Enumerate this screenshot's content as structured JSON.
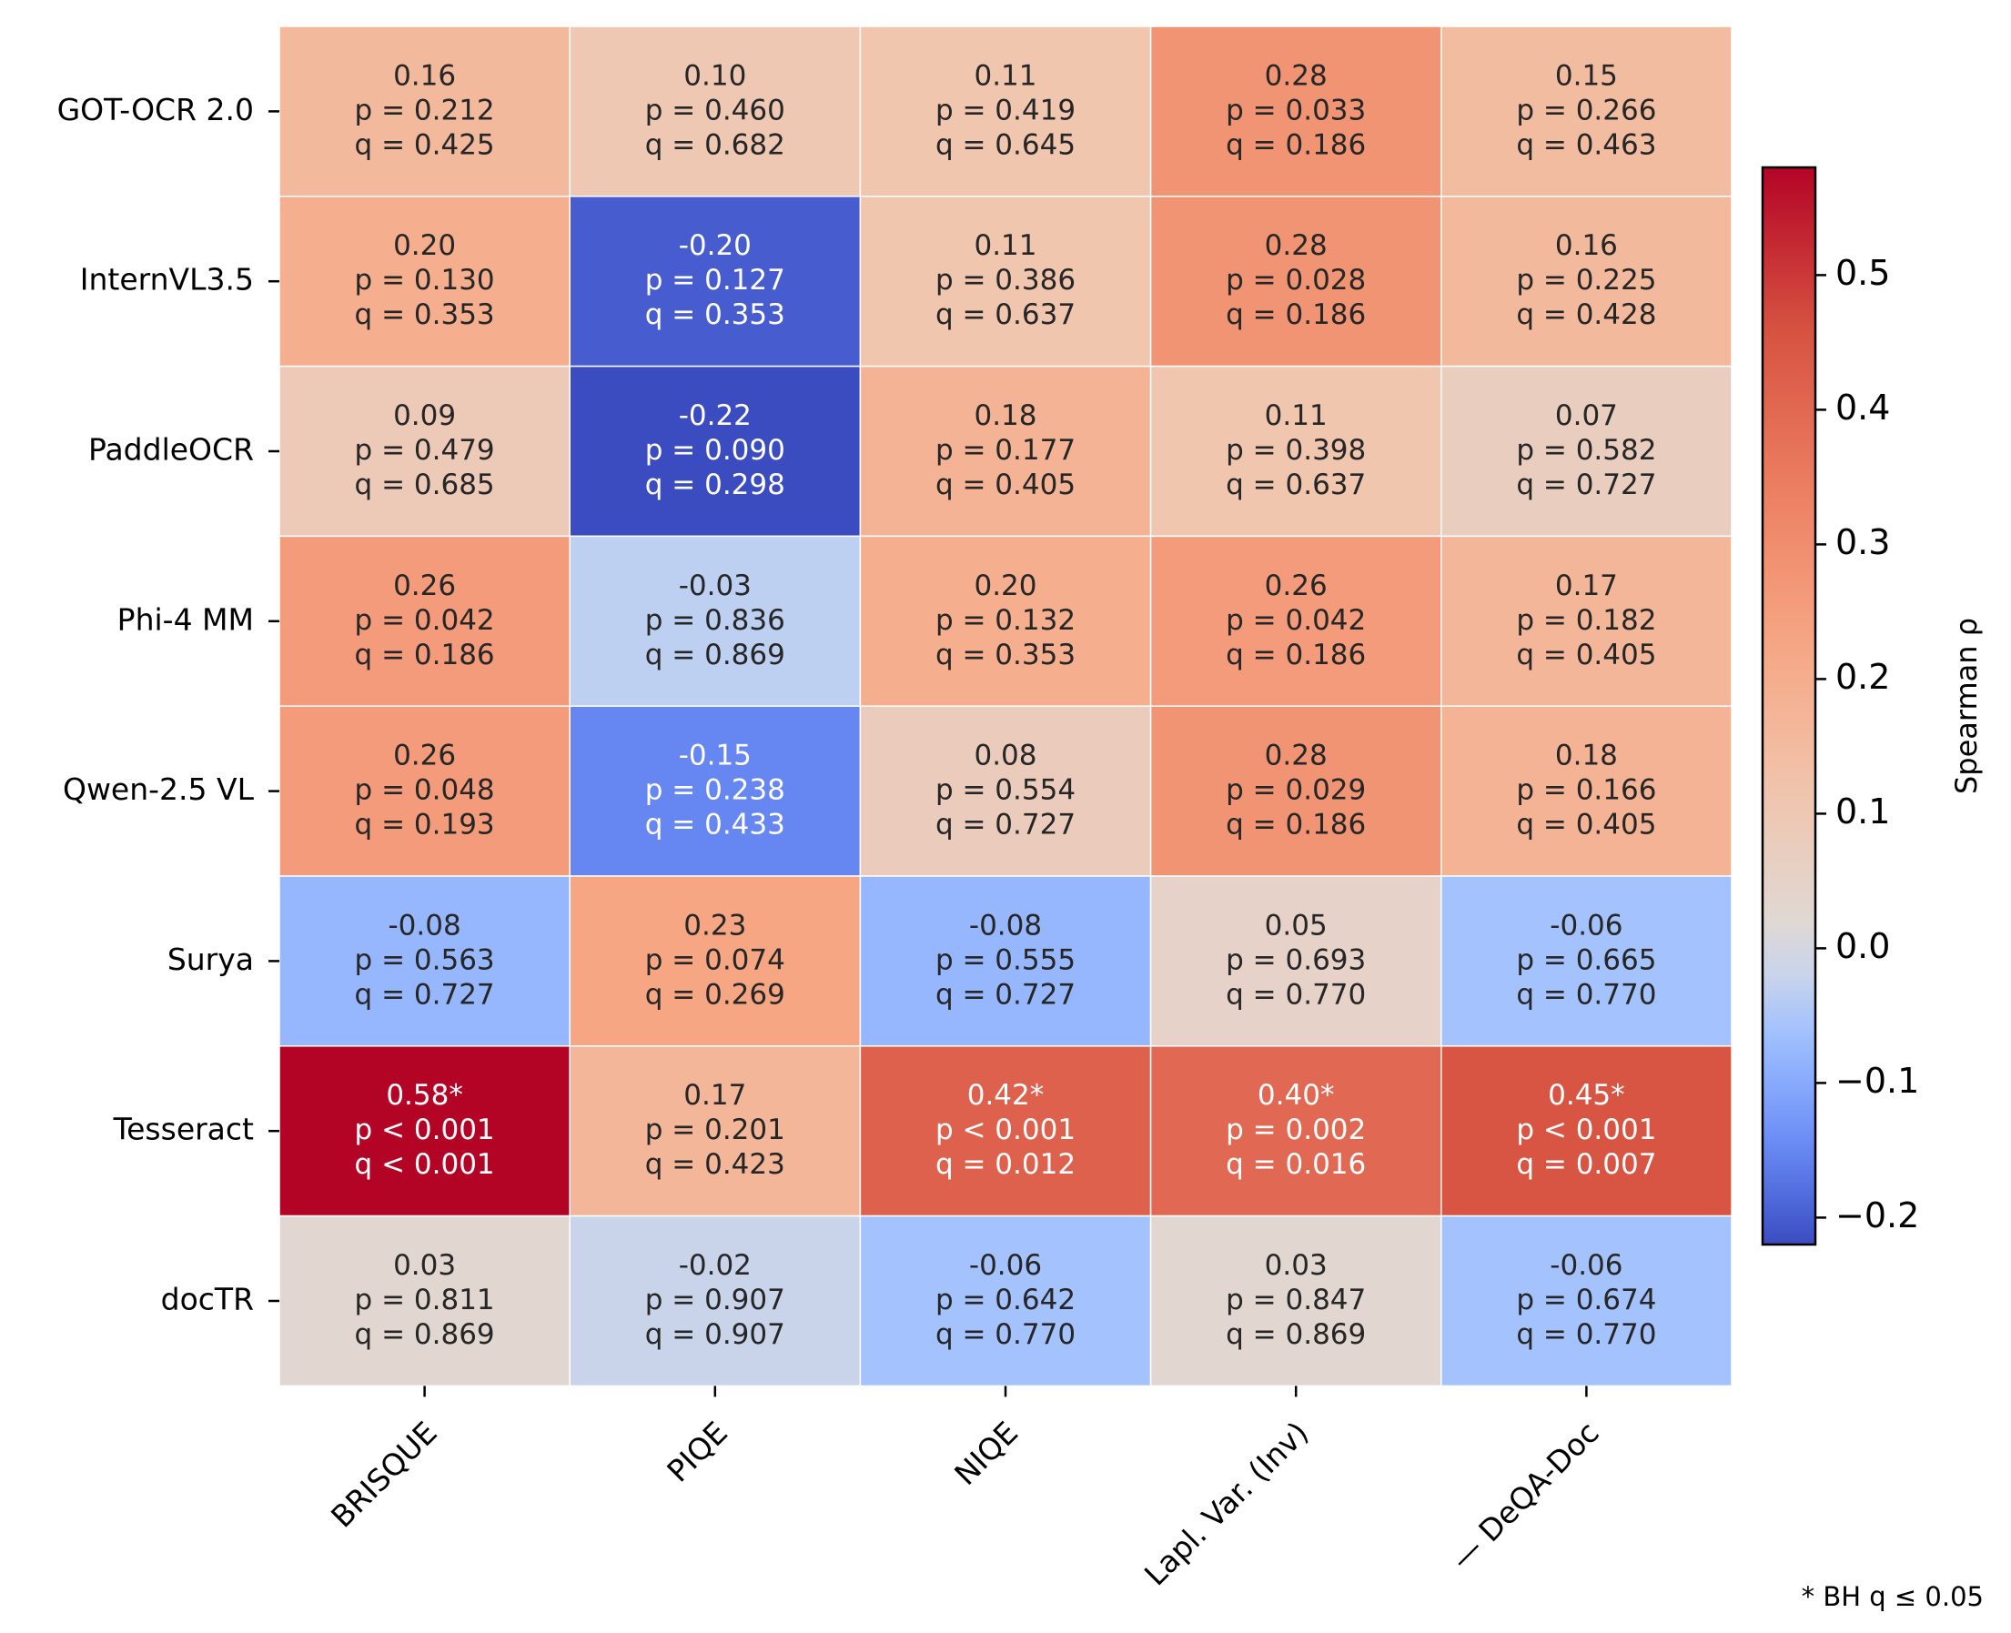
{
  "chart_data": {
    "type": "heatmap",
    "rows": [
      "GOT-OCR 2.0",
      "InternVL3.5",
      "PaddleOCR",
      "Phi-4 MM",
      "Qwen-2.5 VL",
      "Surya",
      "Tesseract",
      "docTR"
    ],
    "columns": [
      "BRISQUE",
      "PIQE",
      "NIQE",
      "Lapl. Var. (Inv)",
      "— DeQA-Doc"
    ],
    "values": [
      [
        0.16,
        0.1,
        0.11,
        0.28,
        0.15
      ],
      [
        0.2,
        -0.2,
        0.11,
        0.28,
        0.16
      ],
      [
        0.09,
        -0.22,
        0.18,
        0.11,
        0.07
      ],
      [
        0.26,
        -0.03,
        0.2,
        0.26,
        0.17
      ],
      [
        0.26,
        -0.15,
        0.08,
        0.28,
        0.18
      ],
      [
        -0.08,
        0.23,
        -0.08,
        0.05,
        -0.06
      ],
      [
        0.58,
        0.17,
        0.42,
        0.4,
        0.45
      ],
      [
        0.03,
        -0.02,
        -0.06,
        0.03,
        -0.06
      ]
    ],
    "annotations": [
      [
        [
          "0.16",
          "p = 0.212",
          "q = 0.425"
        ],
        [
          "0.10",
          "p = 0.460",
          "q = 0.682"
        ],
        [
          "0.11",
          "p = 0.419",
          "q = 0.645"
        ],
        [
          "0.28",
          "p = 0.033",
          "q = 0.186"
        ],
        [
          "0.15",
          "p = 0.266",
          "q = 0.463"
        ]
      ],
      [
        [
          "0.20",
          "p = 0.130",
          "q = 0.353"
        ],
        [
          "-0.20",
          "p = 0.127",
          "q = 0.353"
        ],
        [
          "0.11",
          "p = 0.386",
          "q = 0.637"
        ],
        [
          "0.28",
          "p = 0.028",
          "q = 0.186"
        ],
        [
          "0.16",
          "p = 0.225",
          "q = 0.428"
        ]
      ],
      [
        [
          "0.09",
          "p = 0.479",
          "q = 0.685"
        ],
        [
          "-0.22",
          "p = 0.090",
          "q = 0.298"
        ],
        [
          "0.18",
          "p = 0.177",
          "q = 0.405"
        ],
        [
          "0.11",
          "p = 0.398",
          "q = 0.637"
        ],
        [
          "0.07",
          "p = 0.582",
          "q = 0.727"
        ]
      ],
      [
        [
          "0.26",
          "p = 0.042",
          "q = 0.186"
        ],
        [
          "-0.03",
          "p = 0.836",
          "q = 0.869"
        ],
        [
          "0.20",
          "p = 0.132",
          "q = 0.353"
        ],
        [
          "0.26",
          "p = 0.042",
          "q = 0.186"
        ],
        [
          "0.17",
          "p = 0.182",
          "q = 0.405"
        ]
      ],
      [
        [
          "0.26",
          "p = 0.048",
          "q = 0.193"
        ],
        [
          "-0.15",
          "p = 0.238",
          "q = 0.433"
        ],
        [
          "0.08",
          "p = 0.554",
          "q = 0.727"
        ],
        [
          "0.28",
          "p = 0.029",
          "q = 0.186"
        ],
        [
          "0.18",
          "p = 0.166",
          "q = 0.405"
        ]
      ],
      [
        [
          "-0.08",
          "p = 0.563",
          "q = 0.727"
        ],
        [
          "0.23",
          "p = 0.074",
          "q = 0.269"
        ],
        [
          "-0.08",
          "p = 0.555",
          "q = 0.727"
        ],
        [
          "0.05",
          "p = 0.693",
          "q = 0.770"
        ],
        [
          "-0.06",
          "p = 0.665",
          "q = 0.770"
        ]
      ],
      [
        [
          "0.58*",
          "p < 0.001",
          "q < 0.001"
        ],
        [
          "0.17",
          "p = 0.201",
          "q = 0.423"
        ],
        [
          "0.42*",
          "p < 0.001",
          "q = 0.012"
        ],
        [
          "0.40*",
          "p = 0.002",
          "q = 0.016"
        ],
        [
          "0.45*",
          "p < 0.001",
          "q = 0.007"
        ]
      ],
      [
        [
          "0.03",
          "p = 0.811",
          "q = 0.869"
        ],
        [
          "-0.02",
          "p = 0.907",
          "q = 0.907"
        ],
        [
          "-0.06",
          "p = 0.642",
          "q = 0.770"
        ],
        [
          "0.03",
          "p = 0.847",
          "q = 0.869"
        ],
        [
          "-0.06",
          "p = 0.674",
          "q = 0.770"
        ]
      ]
    ],
    "colormap": "coolwarm",
    "center": 0,
    "vmin": -0.22,
    "vmax": 0.58,
    "colorbar": {
      "label": "Spearman ρ",
      "ticks": [
        -0.2,
        -0.1,
        0.0,
        0.1,
        0.2,
        0.3,
        0.4,
        0.5
      ],
      "tick_labels": [
        "−0.2",
        "−0.1",
        "0.0",
        "0.1",
        "0.2",
        "0.3",
        "0.4",
        "0.5"
      ]
    },
    "footnote": "* BH q ≤ 0.05",
    "title": "",
    "xlabel": "",
    "ylabel": ""
  }
}
